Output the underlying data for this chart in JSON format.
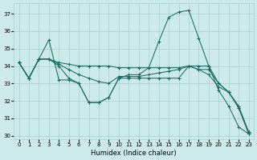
{
  "xlabel": "Humidex (Indice chaleur)",
  "xlim": [
    -0.5,
    23.5
  ],
  "ylim": [
    29.8,
    37.6
  ],
  "yticks": [
    30,
    31,
    32,
    33,
    34,
    35,
    36,
    37
  ],
  "xticks": [
    0,
    1,
    2,
    3,
    4,
    5,
    6,
    7,
    8,
    9,
    10,
    11,
    12,
    13,
    14,
    15,
    16,
    17,
    18,
    19,
    20,
    21,
    22,
    23
  ],
  "bg": "#cdeaea",
  "grid_color": "#a8cccc",
  "line_color": "#1a6b60",
  "lines": [
    [
      34.2,
      33.3,
      34.4,
      35.5,
      33.2,
      33.2,
      33.0,
      31.9,
      31.9,
      32.2,
      33.3,
      33.5,
      33.5,
      33.9,
      35.4,
      36.8,
      37.1,
      37.2,
      35.6,
      34.0,
      32.6,
      31.7,
      30.5,
      30.1
    ],
    [
      34.2,
      33.3,
      34.4,
      34.4,
      34.2,
      34.1,
      34.0,
      34.0,
      34.0,
      34.0,
      33.9,
      33.9,
      33.9,
      33.9,
      33.9,
      33.9,
      33.9,
      34.0,
      34.0,
      34.0,
      33.0,
      32.5,
      31.7,
      30.2
    ],
    [
      34.2,
      33.3,
      34.4,
      34.4,
      34.1,
      33.8,
      33.5,
      33.3,
      33.1,
      33.0,
      33.4,
      33.4,
      33.4,
      33.5,
      33.6,
      33.7,
      33.8,
      34.0,
      33.8,
      33.5,
      32.8,
      32.5,
      31.6,
      30.2
    ],
    [
      34.2,
      33.3,
      34.4,
      34.4,
      34.0,
      33.3,
      33.0,
      31.9,
      31.9,
      32.2,
      33.3,
      33.3,
      33.3,
      33.3,
      33.3,
      33.3,
      33.3,
      34.0,
      33.8,
      33.8,
      33.0,
      32.5,
      31.6,
      30.1
    ]
  ]
}
